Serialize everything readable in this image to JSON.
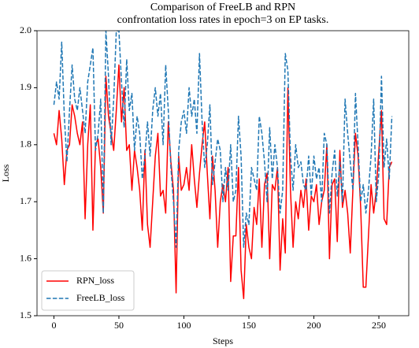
{
  "chart_data": {
    "type": "line",
    "title": [
      "Comparison of FreeLB and RPN",
      "confrontation loss rates in epoch=3 on EP tasks."
    ],
    "xlabel": "Steps",
    "ylabel": "Loss",
    "x": [
      0,
      2,
      4,
      6,
      8,
      10,
      12,
      14,
      16,
      18,
      20,
      22,
      24,
      26,
      28,
      30,
      32,
      34,
      36,
      38,
      40,
      42,
      44,
      46,
      48,
      50,
      52,
      54,
      56,
      58,
      60,
      62,
      64,
      66,
      68,
      70,
      72,
      74,
      76,
      78,
      80,
      82,
      84,
      86,
      88,
      90,
      92,
      94,
      96,
      98,
      100,
      102,
      104,
      106,
      108,
      110,
      112,
      114,
      116,
      118,
      120,
      122,
      124,
      126,
      128,
      130,
      132,
      134,
      136,
      138,
      140,
      142,
      144,
      146,
      148,
      150,
      152,
      154,
      156,
      158,
      160,
      162,
      164,
      166,
      168,
      170,
      172,
      174,
      176,
      178,
      180,
      182,
      184,
      186,
      188,
      190,
      192,
      194,
      196,
      198,
      200,
      202,
      204,
      206,
      208,
      210,
      212,
      214,
      216,
      218,
      220,
      222,
      224,
      226,
      228,
      230,
      232,
      234,
      236,
      238,
      240,
      242,
      244,
      246,
      248,
      250,
      252,
      254,
      256,
      258,
      260
    ],
    "series": [
      {
        "name": "RPN_loss",
        "color": "#ff0000",
        "dash": false,
        "values": [
          1.82,
          1.8,
          1.86,
          1.81,
          1.73,
          1.79,
          1.8,
          1.87,
          1.85,
          1.82,
          1.8,
          1.84,
          1.67,
          1.8,
          1.87,
          1.65,
          1.8,
          1.81,
          1.76,
          1.68,
          1.92,
          1.85,
          1.82,
          1.79,
          1.86,
          1.94,
          1.84,
          1.9,
          1.79,
          1.8,
          1.72,
          1.79,
          1.76,
          1.72,
          1.65,
          1.79,
          1.66,
          1.62,
          1.7,
          1.78,
          1.82,
          1.71,
          1.72,
          1.68,
          1.84,
          1.77,
          1.72,
          1.54,
          1.78,
          1.72,
          1.73,
          1.76,
          1.72,
          1.8,
          1.74,
          1.69,
          1.75,
          1.8,
          1.84,
          1.75,
          1.67,
          1.78,
          1.72,
          1.62,
          1.7,
          1.73,
          1.7,
          1.76,
          1.56,
          1.64,
          1.64,
          1.76,
          1.58,
          1.53,
          1.66,
          1.62,
          1.6,
          1.69,
          1.66,
          1.74,
          1.62,
          1.73,
          1.75,
          1.6,
          1.73,
          1.72,
          1.76,
          1.58,
          1.67,
          1.61,
          1.9,
          1.72,
          1.62,
          1.7,
          1.67,
          1.72,
          1.69,
          1.74,
          1.65,
          1.71,
          1.7,
          1.73,
          1.66,
          1.7,
          1.72,
          1.8,
          1.6,
          1.73,
          1.74,
          1.63,
          1.79,
          1.69,
          1.72,
          1.68,
          1.61,
          1.72,
          1.82,
          1.78,
          1.69,
          1.55,
          1.55,
          1.64,
          1.73,
          1.68,
          1.72,
          1.79,
          1.86,
          1.67,
          1.66,
          1.76,
          1.77
        ]
      },
      {
        "name": "FreeLB_loss",
        "color": "#1f77b4",
        "dash": true,
        "values": [
          1.87,
          1.91,
          1.88,
          1.98,
          1.85,
          1.77,
          1.86,
          1.94,
          1.88,
          1.86,
          1.9,
          1.86,
          1.82,
          1.91,
          1.94,
          1.97,
          1.79,
          1.82,
          1.88,
          1.68,
          2.0,
          1.92,
          1.8,
          1.88,
          2.0,
          2.0,
          1.91,
          1.83,
          1.95,
          1.86,
          1.89,
          1.79,
          1.85,
          1.82,
          1.74,
          1.78,
          1.84,
          1.78,
          1.86,
          1.9,
          1.85,
          1.89,
          1.8,
          1.94,
          1.86,
          1.76,
          1.7,
          1.62,
          1.79,
          1.84,
          1.86,
          1.82,
          1.9,
          1.85,
          1.88,
          1.82,
          1.96,
          1.84,
          1.76,
          1.8,
          1.87,
          1.73,
          1.77,
          1.81,
          1.79,
          1.7,
          1.76,
          1.72,
          1.8,
          1.7,
          1.72,
          1.85,
          1.78,
          1.62,
          1.68,
          1.66,
          1.76,
          1.74,
          1.72,
          1.85,
          1.82,
          1.77,
          1.7,
          1.83,
          1.74,
          1.8,
          1.76,
          1.68,
          1.72,
          1.96,
          1.93,
          1.78,
          1.72,
          1.8,
          1.76,
          1.77,
          1.73,
          1.72,
          1.78,
          1.71,
          1.78,
          1.74,
          1.76,
          1.7,
          1.82,
          1.8,
          1.68,
          1.75,
          1.79,
          1.71,
          1.77,
          1.7,
          1.88,
          1.82,
          1.77,
          1.72,
          1.89,
          1.8,
          1.7,
          1.73,
          1.68,
          1.72,
          1.78,
          1.88,
          1.7,
          1.75,
          1.92,
          1.76,
          1.81,
          1.74,
          1.85
        ]
      }
    ],
    "xlim": [
      -13,
      273
    ],
    "ylim": [
      1.5,
      2.0
    ],
    "xticks": [
      0,
      50,
      100,
      150,
      200,
      250
    ],
    "yticks": [
      1.5,
      1.6,
      1.7,
      1.8,
      1.9,
      {
        "value": 2.0,
        "label": "2.0"
      }
    ],
    "legend": "lower left"
  }
}
